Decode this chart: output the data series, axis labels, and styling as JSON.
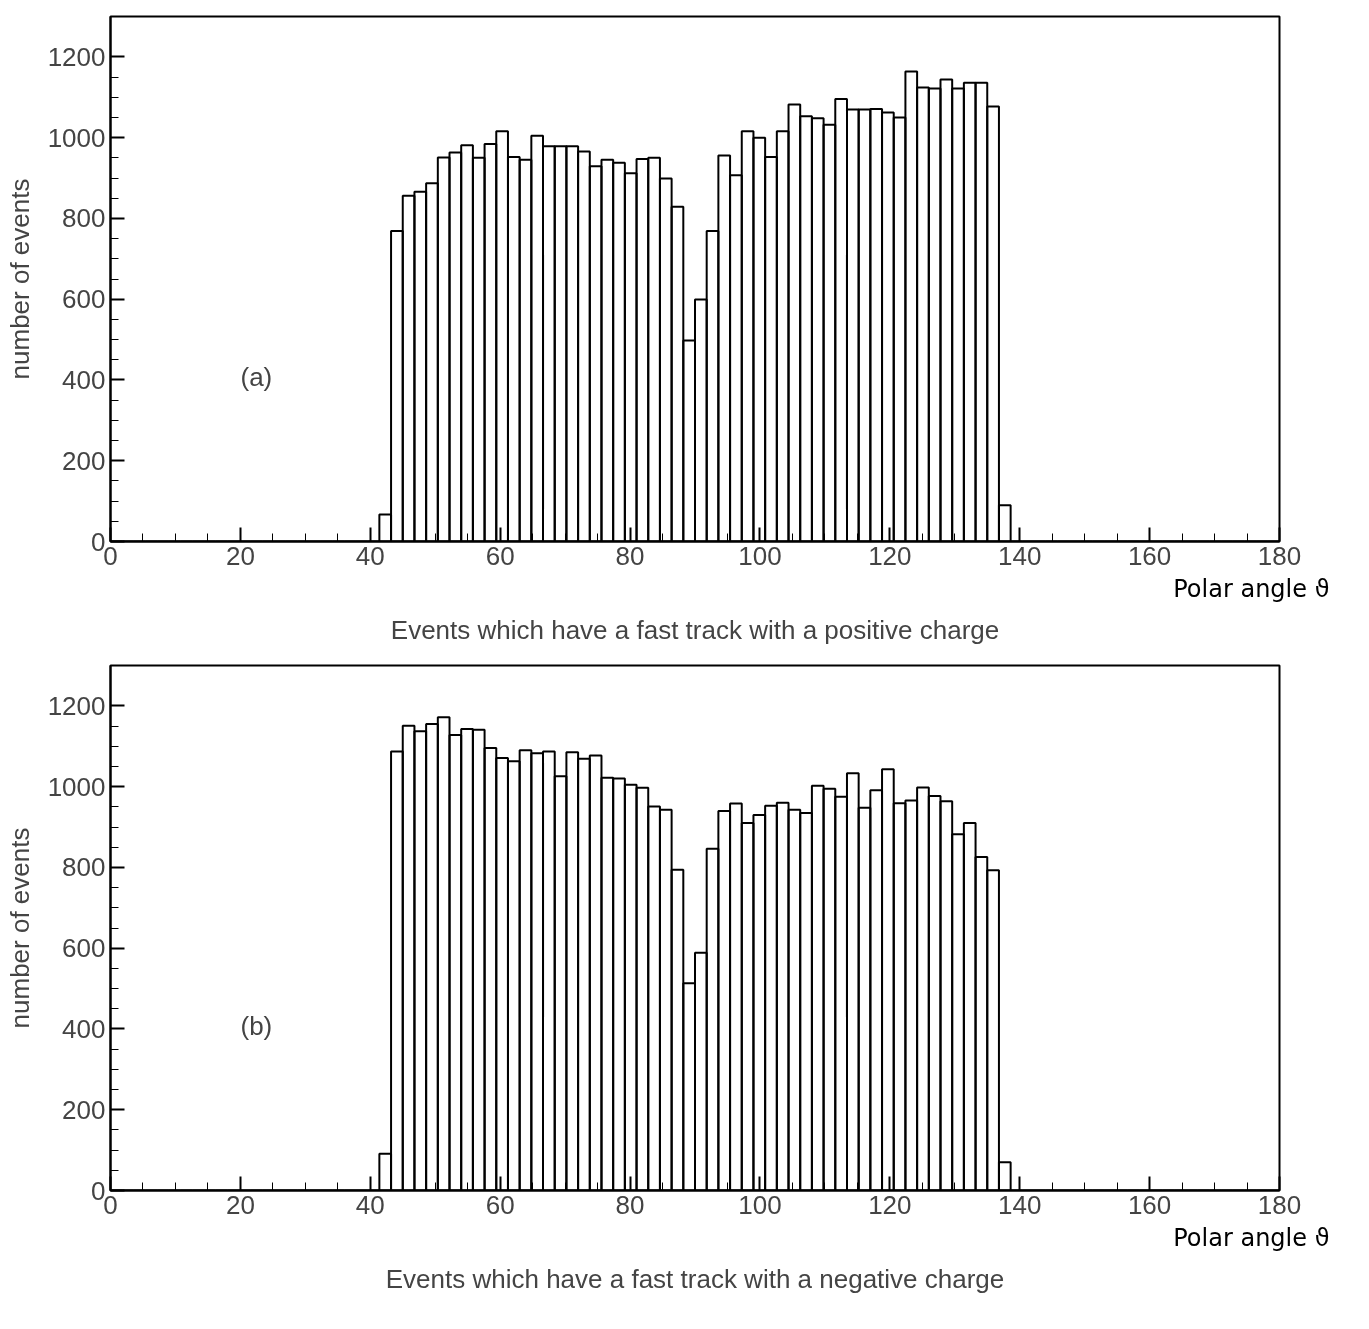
{
  "chart_data": [
    {
      "type": "histogram",
      "title": "Events which have a fast track with a positive charge",
      "xlabel": "Polar angle ϑ",
      "ylabel": "number of events",
      "annotations": [
        "(a)"
      ],
      "bins": [
        0,
        1.8,
        3.6,
        5.4,
        7.2,
        9,
        10.8,
        12.6,
        14.4,
        16.2,
        18,
        19.8,
        21.6,
        23.4,
        25.2,
        27,
        28.8,
        30.6,
        32.4,
        34.2,
        36,
        37.8,
        39.6,
        41.4,
        43.2,
        45,
        46.8,
        48.6,
        50.4,
        52.2,
        54,
        55.8,
        57.6,
        59.4,
        61.2,
        63,
        64.8,
        66.6,
        68.4,
        70.2,
        72,
        73.8,
        75.6,
        77.4,
        79.2,
        81,
        82.8,
        84.6,
        86.4,
        88.2,
        90,
        91.8,
        93.6,
        95.4,
        97.2,
        99,
        100.8,
        102.6,
        104.4,
        106.2,
        108,
        109.8,
        111.6,
        113.4,
        115.2,
        117,
        118.8,
        120.6,
        122.4,
        124.2,
        126,
        127.8,
        129.6,
        131.4,
        133.2,
        135,
        136.8,
        138.6,
        140.4,
        142.2,
        144,
        145.8,
        147.6,
        149.4,
        151.2,
        153,
        154.8,
        156.6,
        158.4,
        160.2,
        162,
        163.8,
        165.6,
        167.4,
        169.2,
        171,
        172.8,
        174.6,
        176.4,
        178.2,
        180
      ],
      "values": [
        0,
        0,
        0,
        0,
        0,
        0,
        0,
        0,
        0,
        0,
        0,
        0,
        0,
        0,
        0,
        0,
        0,
        0,
        0,
        0,
        0,
        0,
        0,
        67,
        769,
        856,
        866,
        887,
        951,
        963,
        981,
        950,
        984,
        1016,
        952,
        945,
        1005,
        979,
        979,
        979,
        966,
        929,
        945,
        938,
        912,
        947,
        950,
        899,
        829,
        498,
        599,
        769,
        956,
        907,
        1016,
        1000,
        952,
        1016,
        1082,
        1053,
        1048,
        1032,
        1096,
        1070,
        1070,
        1071,
        1062,
        1050,
        1164,
        1124,
        1122,
        1144,
        1122,
        1136,
        1136,
        1077,
        90,
        0,
        0,
        0,
        0,
        0,
        0,
        0,
        0,
        0,
        0,
        0,
        0,
        0,
        0,
        0,
        0,
        0,
        0,
        0,
        0,
        0,
        0,
        0
      ],
      "color": "#000000",
      "xlim": [
        0,
        180
      ],
      "ylim": [
        0,
        1300
      ],
      "xticks": [
        0,
        20,
        40,
        60,
        80,
        100,
        120,
        140,
        160,
        180
      ],
      "yticks": [
        0,
        200,
        400,
        600,
        800,
        1000,
        1200
      ],
      "grid": false
    },
    {
      "type": "histogram",
      "title": "Events which have a fast track with a negative charge",
      "xlabel": "Polar angle ϑ",
      "ylabel": "number of events",
      "annotations": [
        "(b)"
      ],
      "bins": [
        0,
        1.8,
        3.6,
        5.4,
        7.2,
        9,
        10.8,
        12.6,
        14.4,
        16.2,
        18,
        19.8,
        21.6,
        23.4,
        25.2,
        27,
        28.8,
        30.6,
        32.4,
        34.2,
        36,
        37.8,
        39.6,
        41.4,
        43.2,
        45,
        46.8,
        48.6,
        50.4,
        52.2,
        54,
        55.8,
        57.6,
        59.4,
        61.2,
        63,
        64.8,
        66.6,
        68.4,
        70.2,
        72,
        73.8,
        75.6,
        77.4,
        79.2,
        81,
        82.8,
        84.6,
        86.4,
        88.2,
        90,
        91.8,
        93.6,
        95.4,
        97.2,
        99,
        100.8,
        102.6,
        104.4,
        106.2,
        108,
        109.8,
        111.6,
        113.4,
        115.2,
        117,
        118.8,
        120.6,
        122.4,
        124.2,
        126,
        127.8,
        129.6,
        131.4,
        133.2,
        135,
        136.8,
        138.6,
        140.4,
        142.2,
        144,
        145.8,
        147.6,
        149.4,
        151.2,
        153,
        154.8,
        156.6,
        158.4,
        160.2,
        162,
        163.8,
        165.6,
        167.4,
        169.2,
        171,
        172.8,
        174.6,
        176.4,
        178.2,
        180
      ],
      "values": [
        0,
        0,
        0,
        0,
        0,
        0,
        0,
        0,
        0,
        0,
        0,
        0,
        0,
        0,
        0,
        0,
        0,
        0,
        0,
        0,
        0,
        0,
        0,
        91,
        1087,
        1151,
        1137,
        1155,
        1172,
        1128,
        1143,
        1141,
        1096,
        1071,
        1063,
        1090,
        1083,
        1087,
        1026,
        1085,
        1069,
        1077,
        1022,
        1020,
        1005,
        997,
        951,
        943,
        794,
        513,
        589,
        846,
        940,
        958,
        910,
        930,
        953,
        960,
        943,
        935,
        1002,
        995,
        975,
        1033,
        948,
        991,
        1043,
        959,
        966,
        998,
        977,
        964,
        882,
        910,
        826,
        793,
        70,
        0,
        0,
        0,
        0,
        0,
        0,
        0,
        0,
        0,
        0,
        0,
        0,
        0,
        0,
        0,
        0,
        0,
        0,
        0,
        0,
        0,
        0,
        0
      ],
      "color": "#000000",
      "xlim": [
        0,
        180
      ],
      "ylim": [
        0,
        1300
      ],
      "xticks": [
        0,
        20,
        40,
        60,
        80,
        100,
        120,
        140,
        160,
        180
      ],
      "yticks": [
        0,
        200,
        400,
        600,
        800,
        1000,
        1200
      ],
      "grid": false
    }
  ]
}
